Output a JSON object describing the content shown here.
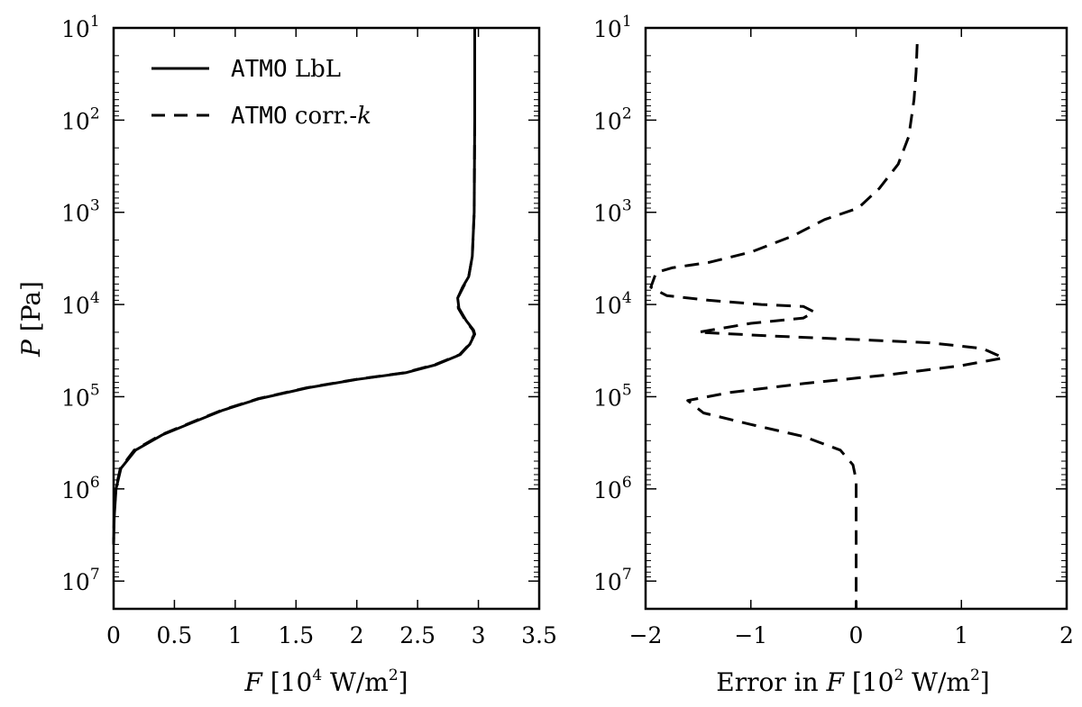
{
  "chart_data": [
    {
      "type": "line",
      "xlabel": {
        "var": "F",
        "open": "[10",
        "exp": "4",
        "unit": " W/m",
        "unit_exp": "2",
        "close": "]"
      },
      "ylabel": {
        "var": "P",
        "unit": "[Pa]"
      },
      "xlim": [
        0,
        3.5
      ],
      "ylim": [
        10,
        20000000
      ],
      "yscale": "log",
      "y_inverted": true,
      "x_ticks": [
        "0",
        "0.5",
        "1",
        "1.5",
        "2",
        "2.5",
        "3",
        "3.5"
      ],
      "y_ticks": [
        {
          "base": "10",
          "exp": "1"
        },
        {
          "base": "10",
          "exp": "2"
        },
        {
          "base": "10",
          "exp": "3"
        },
        {
          "base": "10",
          "exp": "4"
        },
        {
          "base": "10",
          "exp": "5"
        },
        {
          "base": "10",
          "exp": "6"
        },
        {
          "base": "10",
          "exp": "7"
        }
      ],
      "legend": {
        "position": "top-left",
        "entries": [
          {
            "style": "solid",
            "mono": "ATMO",
            "text": " LbL"
          },
          {
            "style": "dashed",
            "mono": "ATMO",
            "text": " corr.-",
            "italic": "k"
          }
        ]
      },
      "series": [
        {
          "style": "solid",
          "points": [
            [
              2.97,
              10
            ],
            [
              2.97,
              100
            ],
            [
              2.965,
              1000
            ],
            [
              2.95,
              3000
            ],
            [
              2.92,
              5000
            ],
            [
              2.87,
              6500
            ],
            [
              2.83,
              8500
            ],
            [
              2.84,
              11000
            ],
            [
              2.9,
              15000
            ],
            [
              2.96,
              19000
            ],
            [
              2.97,
              21000
            ],
            [
              2.93,
              27000
            ],
            [
              2.85,
              35000
            ],
            [
              2.65,
              45000
            ],
            [
              2.4,
              55000
            ],
            [
              2.0,
              65000
            ],
            [
              1.6,
              80000
            ],
            [
              1.2,
              105000
            ],
            [
              0.9,
              140000
            ],
            [
              0.65,
              190000
            ],
            [
              0.4,
              260000
            ],
            [
              0.18,
              380000
            ],
            [
              0.06,
              600000
            ],
            [
              0.02,
              1000000
            ],
            [
              0.005,
              2000000
            ],
            [
              0.0,
              4000000
            ]
          ]
        },
        {
          "style": "dashed",
          "points": [
            [
              2.97,
              10
            ],
            [
              2.97,
              100
            ],
            [
              2.965,
              1000
            ],
            [
              2.95,
              3000
            ],
            [
              2.92,
              5000
            ],
            [
              2.875,
              6500
            ],
            [
              2.83,
              8500
            ],
            [
              2.835,
              11000
            ],
            [
              2.895,
              15000
            ],
            [
              2.955,
              19000
            ],
            [
              2.965,
              21000
            ],
            [
              2.925,
              27000
            ],
            [
              2.845,
              35000
            ],
            [
              2.64,
              45000
            ],
            [
              2.39,
              55000
            ],
            [
              1.99,
              65000
            ],
            [
              1.59,
              80000
            ],
            [
              1.19,
              105000
            ],
            [
              0.89,
              140000
            ],
            [
              0.64,
              190000
            ],
            [
              0.39,
              260000
            ],
            [
              0.17,
              380000
            ],
            [
              0.055,
              600000
            ],
            [
              0.018,
              1000000
            ],
            [
              0.004,
              2000000
            ],
            [
              0.0,
              4000000
            ]
          ]
        }
      ]
    },
    {
      "type": "line",
      "xlabel": {
        "prefix": "Error in ",
        "var": "F",
        "open": " [10",
        "exp": "2",
        "unit": " W/m",
        "unit_exp": "2",
        "close": "]"
      },
      "xlim": [
        -2,
        2
      ],
      "ylim": [
        10,
        20000000
      ],
      "yscale": "log",
      "y_inverted": true,
      "x_ticks": [
        "−2",
        "−1",
        "0",
        "1",
        "2"
      ],
      "y_ticks": [
        {
          "base": "10",
          "exp": "1"
        },
        {
          "base": "10",
          "exp": "2"
        },
        {
          "base": "10",
          "exp": "3"
        },
        {
          "base": "10",
          "exp": "4"
        },
        {
          "base": "10",
          "exp": "5"
        },
        {
          "base": "10",
          "exp": "6"
        },
        {
          "base": "10",
          "exp": "7"
        }
      ],
      "series": [
        {
          "style": "dashed",
          "points": [
            [
              0.58,
              15
            ],
            [
              0.57,
              30
            ],
            [
              0.55,
              60
            ],
            [
              0.5,
              150
            ],
            [
              0.4,
              300
            ],
            [
              0.22,
              550
            ],
            [
              0.02,
              900
            ],
            [
              -0.3,
              1200
            ],
            [
              -0.6,
              1800
            ],
            [
              -1.0,
              2700
            ],
            [
              -1.4,
              3500
            ],
            [
              -1.75,
              4000
            ],
            [
              -1.9,
              4500
            ],
            [
              -1.95,
              6500
            ],
            [
              -1.8,
              8000
            ],
            [
              -1.4,
              9000
            ],
            [
              -0.9,
              10000
            ],
            [
              -0.5,
              10500
            ],
            [
              -0.4,
              12000
            ],
            [
              -0.5,
              14000
            ],
            [
              -1.0,
              16000
            ],
            [
              -1.5,
              20000
            ],
            [
              -0.8,
              22000
            ],
            [
              0.0,
              24000
            ],
            [
              0.7,
              26000
            ],
            [
              1.2,
              30000
            ],
            [
              1.4,
              38000
            ],
            [
              1.0,
              46000
            ],
            [
              0.3,
              58000
            ],
            [
              -0.5,
              72000
            ],
            [
              -1.2,
              90000
            ],
            [
              -1.6,
              110000
            ],
            [
              -1.45,
              150000
            ],
            [
              -1.0,
              200000
            ],
            [
              -0.5,
              270000
            ],
            [
              -0.15,
              380000
            ],
            [
              -0.03,
              550000
            ],
            [
              0.0,
              800000
            ],
            [
              0.0,
              2000000
            ],
            [
              0.0,
              20000000
            ]
          ]
        }
      ]
    }
  ]
}
